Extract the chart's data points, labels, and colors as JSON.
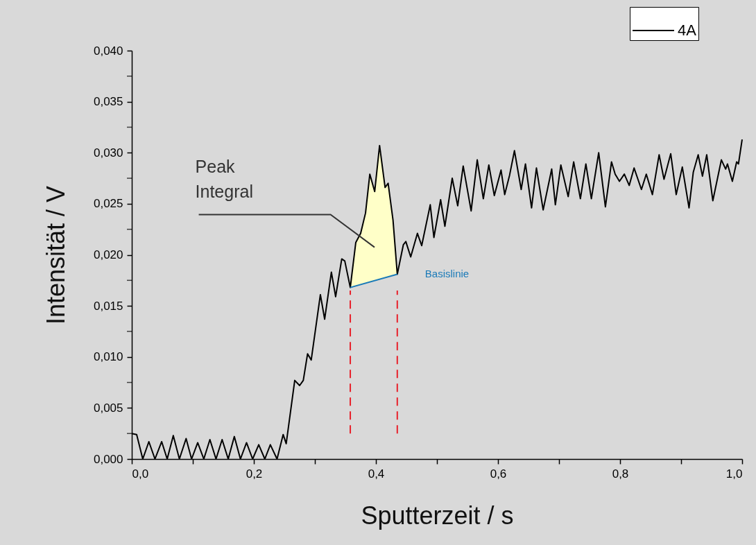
{
  "chart_data": {
    "type": "line",
    "xlabel": "Sputterzeit  / s",
    "ylabel": "Intensität / V",
    "legend": "top right",
    "marker": "none",
    "xlim": [
      0,
      1
    ],
    "ylim": [
      0,
      0.04
    ],
    "xticks": [
      {
        "value": 0,
        "label": "0,0"
      },
      {
        "value": 0.1,
        "label": null
      },
      {
        "value": 0.2,
        "label": "0,2"
      },
      {
        "value": 0.3,
        "label": null
      },
      {
        "value": 0.4,
        "label": "0,4"
      },
      {
        "value": 0.5,
        "label": null
      },
      {
        "value": 0.6,
        "label": "0,6"
      },
      {
        "value": 0.7,
        "label": null
      },
      {
        "value": 0.8,
        "label": "0,8"
      },
      {
        "value": 0.9,
        "label": null
      },
      {
        "value": 1,
        "label": "1,0"
      }
    ],
    "yticks": [
      {
        "value": 0,
        "label": "0,000"
      },
      {
        "value": 0.0025,
        "label": null
      },
      {
        "value": 0.005,
        "label": "0,005"
      },
      {
        "value": 0.0075,
        "label": null
      },
      {
        "value": 0.01,
        "label": "0,010"
      },
      {
        "value": 0.0125,
        "label": null
      },
      {
        "value": 0.015,
        "label": "0,015"
      },
      {
        "value": 0.0175,
        "label": null
      },
      {
        "value": 0.02,
        "label": "0,020"
      },
      {
        "value": 0.0225,
        "label": null
      },
      {
        "value": 0.025,
        "label": "0,025"
      },
      {
        "value": 0.0275,
        "label": null
      },
      {
        "value": 0.03,
        "label": "0,030"
      },
      {
        "value": 0.0325,
        "label": null
      },
      {
        "value": 0.035,
        "label": "0,035"
      },
      {
        "value": 0.0375,
        "label": null
      },
      {
        "value": 0.04,
        "label": "0,040"
      }
    ],
    "annotations": [
      "Peak\nIntegral"
    ],
    "series": [
      {
        "type": "area",
        "color": "#ffffc8",
        "x": [
          0.358,
          0.367,
          0.375,
          0.383,
          0.39,
          0.398,
          0.406,
          0.415,
          0.42,
          0.428,
          0.435
        ],
        "values": [
          0.0168,
          0.0212,
          0.0221,
          0.0241,
          0.0279,
          0.0262,
          0.0307,
          0.0266,
          0.027,
          0.0234,
          0.0181
        ]
      },
      {
        "name": "4A",
        "color": "#000000",
        "line_style": "solid",
        "x": [
          0,
          0.008,
          0.018,
          0.028,
          0.038,
          0.049,
          0.058,
          0.068,
          0.078,
          0.089,
          0.098,
          0.108,
          0.118,
          0.128,
          0.138,
          0.148,
          0.158,
          0.168,
          0.178,
          0.188,
          0.198,
          0.208,
          0.218,
          0.227,
          0.238,
          0.248,
          0.253,
          0.267,
          0.275,
          0.281,
          0.288,
          0.294,
          0.309,
          0.316,
          0.327,
          0.334,
          0.344,
          0.349,
          0.358,
          0.367,
          0.375,
          0.383,
          0.39,
          0.398,
          0.406,
          0.415,
          0.42,
          0.428,
          0.435,
          0.445,
          0.449,
          0.457,
          0.468,
          0.475,
          0.489,
          0.495,
          0.506,
          0.513,
          0.525,
          0.534,
          0.543,
          0.556,
          0.566,
          0.576,
          0.585,
          0.594,
          0.605,
          0.611,
          0.619,
          0.627,
          0.638,
          0.645,
          0.655,
          0.663,
          0.674,
          0.688,
          0.694,
          0.703,
          0.715,
          0.724,
          0.735,
          0.744,
          0.753,
          0.765,
          0.776,
          0.786,
          0.792,
          0.799,
          0.807,
          0.815,
          0.823,
          0.835,
          0.843,
          0.853,
          0.864,
          0.872,
          0.883,
          0.892,
          0.902,
          0.913,
          0.92,
          0.928,
          0.935,
          0.942,
          0.952,
          0.966,
          0.973,
          0.976,
          0.984,
          0.991,
          0.994,
          1
        ],
        "values": [
          0.0025,
          0.0024,
          0,
          0.0017,
          0,
          0.0017,
          0,
          0.0023,
          0,
          0.002,
          0,
          0.0016,
          0,
          0.0019,
          0,
          0.0019,
          0,
          0.0022,
          0,
          0.0016,
          0,
          0.0014,
          0,
          0.0014,
          0,
          0.0024,
          0.0015,
          0.0077,
          0.0072,
          0.0077,
          0.0103,
          0.0097,
          0.0161,
          0.0137,
          0.0183,
          0.0159,
          0.0196,
          0.0194,
          0.0168,
          0.0212,
          0.0221,
          0.0241,
          0.0279,
          0.0262,
          0.0307,
          0.0266,
          0.027,
          0.0234,
          0.0181,
          0.021,
          0.0213,
          0.0198,
          0.0221,
          0.0209,
          0.0249,
          0.0217,
          0.0254,
          0.0228,
          0.0275,
          0.0248,
          0.0287,
          0.0243,
          0.0293,
          0.0255,
          0.0288,
          0.0258,
          0.0283,
          0.0259,
          0.0278,
          0.0302,
          0.0264,
          0.0289,
          0.0246,
          0.0285,
          0.0244,
          0.0284,
          0.0249,
          0.0288,
          0.0257,
          0.0291,
          0.0255,
          0.0289,
          0.0255,
          0.03,
          0.0247,
          0.0291,
          0.0279,
          0.0272,
          0.0279,
          0.0268,
          0.0285,
          0.0264,
          0.0279,
          0.0259,
          0.0298,
          0.0274,
          0.0299,
          0.0259,
          0.0286,
          0.0246,
          0.0281,
          0.0298,
          0.0277,
          0.0298,
          0.0253,
          0.0293,
          0.0284,
          0.0289,
          0.0272,
          0.0291,
          0.0289,
          0.0313
        ]
      },
      {
        "name": "Basislinie",
        "type": "line",
        "color": "#1a7ab8",
        "line_style": "solid",
        "x": [
          0.358,
          0.435
        ],
        "values": [
          0.0168,
          0.0181
        ]
      },
      {
        "type": "line",
        "color": "#e8202a",
        "line_style": "dashed",
        "x": [
          0.358,
          0.358
        ],
        "values": [
          0.0025,
          0.0165
        ]
      },
      {
        "type": "line",
        "color": "#e8202a",
        "line_style": "dashed",
        "x": [
          0.435,
          0.435
        ],
        "values": [
          0.0025,
          0.0165
        ]
      }
    ]
  }
}
